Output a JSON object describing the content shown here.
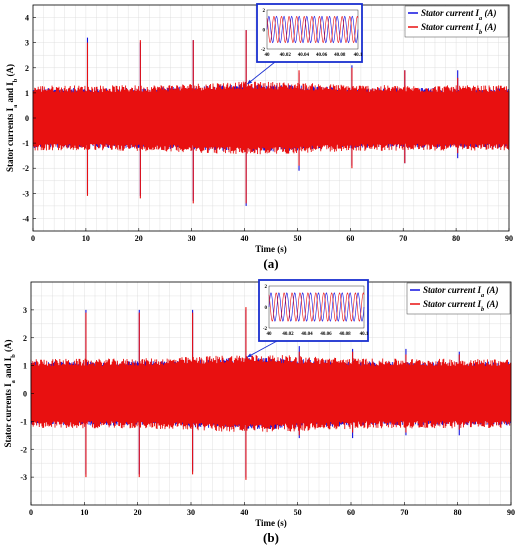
{
  "colors": {
    "ia": "#1010e0",
    "ib": "#e81010",
    "inset_border": "#1a2fd0",
    "grid": "#d9d9d9"
  },
  "chart_data": [
    {
      "type": "line",
      "caption": "(a)",
      "xlabel": "Time (s)",
      "ylabel": "Stator currents I",
      "ylabel_sub_a": "a",
      "ylabel_mid": " and I",
      "ylabel_sub_b": "b",
      "ylabel_end": " (A)",
      "xlim": [
        0,
        90
      ],
      "ylim": [
        -4.5,
        4.5
      ],
      "xticks": [
        0,
        10,
        20,
        30,
        40,
        50,
        60,
        70,
        80,
        90
      ],
      "yticks": [
        -4,
        -3,
        -2,
        -1,
        0,
        1,
        2,
        3,
        4
      ],
      "grid": true,
      "legend_position": "top-right",
      "series": [
        {
          "name": "Stator current I",
          "sub": "a",
          "unit": " (A)",
          "color": "#1010e0",
          "envelope": 1.15,
          "spikes": [
            {
              "x": 10.3,
              "max": 3.2,
              "min": -3.0
            },
            {
              "x": 20.3,
              "max": 3.0,
              "min": -3.1
            },
            {
              "x": 30.3,
              "max": 3.1,
              "min": -3.3
            },
            {
              "x": 40.3,
              "max": 3.5,
              "min": -3.5
            },
            {
              "x": 50.3,
              "max": 1.8,
              "min": -2.1
            },
            {
              "x": 60.3,
              "max": 2.1,
              "min": -1.9
            },
            {
              "x": 70.3,
              "max": 1.9,
              "min": -1.8
            },
            {
              "x": 80.3,
              "max": 1.9,
              "min": -1.6
            }
          ]
        },
        {
          "name": "Stator current I",
          "sub": "b",
          "unit": " (A)",
          "color": "#e81010",
          "envelope": 1.25,
          "spikes": [
            {
              "x": 10.3,
              "max": 3.0,
              "min": -3.1
            },
            {
              "x": 20.3,
              "max": 3.1,
              "min": -3.2
            },
            {
              "x": 30.3,
              "max": 3.1,
              "min": -3.4
            },
            {
              "x": 40.3,
              "max": 3.5,
              "min": -3.4
            },
            {
              "x": 50.3,
              "max": 1.9,
              "min": -1.9
            },
            {
              "x": 60.3,
              "max": 2.0,
              "min": -2.0
            },
            {
              "x": 70.3,
              "max": 1.9,
              "min": -1.8
            },
            {
              "x": 80.3,
              "max": 1.6,
              "min": -1.4
            }
          ]
        }
      ],
      "inset": {
        "xlim": [
          40,
          40.1
        ],
        "ylim": [
          -2,
          2
        ],
        "xticks": [
          "40",
          "40.02",
          "40.04",
          "40.06",
          "40.08",
          "40.1"
        ],
        "yticks": [
          "2",
          "0",
          "-2"
        ],
        "cycles": 12,
        "points_to": {
          "x": 40.5,
          "y": 1.35
        }
      }
    },
    {
      "type": "line",
      "caption": "(b)",
      "xlabel": "Time (s)",
      "ylabel": "Stator currents I",
      "ylabel_sub_a": "a",
      "ylabel_mid": " and I",
      "ylabel_sub_b": "b",
      "ylabel_end": " (A)",
      "xlim": [
        0,
        90
      ],
      "ylim": [
        -4,
        4
      ],
      "xticks": [
        0,
        10,
        20,
        30,
        40,
        50,
        60,
        70,
        80,
        90
      ],
      "yticks": [
        -3,
        -2,
        -1,
        0,
        1,
        2,
        3
      ],
      "grid": true,
      "legend_position": "top-right",
      "series": [
        {
          "name": "Stator current I",
          "sub": "a",
          "unit": " (A)",
          "color": "#1010e0",
          "envelope": 1.1,
          "spikes": [
            {
              "x": 10.3,
              "max": 3.0,
              "min": -2.9
            },
            {
              "x": 20.3,
              "max": 3.0,
              "min": -2.9
            },
            {
              "x": 30.3,
              "max": 3.0,
              "min": -2.8
            },
            {
              "x": 40.3,
              "max": 3.0,
              "min": -3.0
            },
            {
              "x": 50.3,
              "max": 1.7,
              "min": -1.6
            },
            {
              "x": 60.3,
              "max": 1.6,
              "min": -1.6
            },
            {
              "x": 70.3,
              "max": 1.6,
              "min": -1.5
            },
            {
              "x": 80.3,
              "max": 1.5,
              "min": -1.5
            }
          ]
        },
        {
          "name": "Stator current I",
          "sub": "b",
          "unit": " (A)",
          "color": "#e81010",
          "envelope": 1.2,
          "spikes": [
            {
              "x": 10.3,
              "max": 2.9,
              "min": -3.0
            },
            {
              "x": 20.3,
              "max": 2.9,
              "min": -3.0
            },
            {
              "x": 30.3,
              "max": 2.9,
              "min": -2.9
            },
            {
              "x": 40.3,
              "max": 3.1,
              "min": -3.1
            },
            {
              "x": 50.3,
              "max": 1.5,
              "min": -1.5
            },
            {
              "x": 60.3,
              "max": 1.5,
              "min": -1.4
            },
            {
              "x": 70.3,
              "max": 1.4,
              "min": -1.4
            },
            {
              "x": 80.3,
              "max": 1.4,
              "min": -1.3
            }
          ]
        }
      ],
      "inset": {
        "xlim": [
          40,
          40.1
        ],
        "ylim": [
          -2,
          2
        ],
        "xticks": [
          "40",
          "40.02",
          "40.04",
          "40.06",
          "40.08",
          "40.1"
        ],
        "yticks": [
          "2",
          "0",
          "-2"
        ],
        "cycles": 12,
        "points_to": {
          "x": 40.5,
          "y": 1.3
        }
      }
    }
  ]
}
